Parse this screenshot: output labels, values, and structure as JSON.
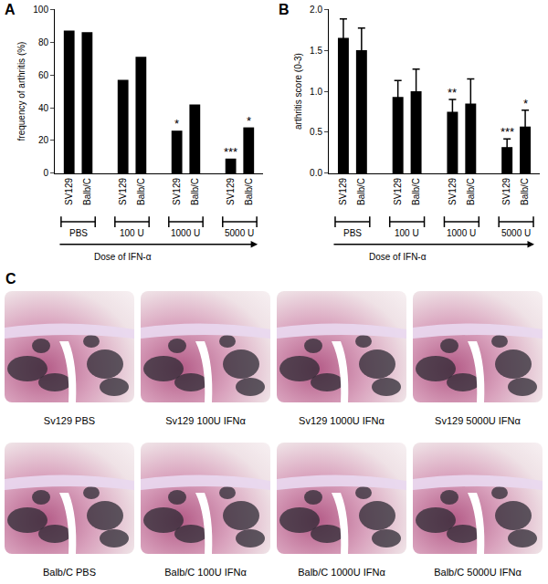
{
  "chart_data": [
    {
      "panel": "A",
      "type": "bar",
      "y_label": "frequency of arthritis (%)",
      "categories": [
        "SV129",
        "Balb/C",
        "SV129",
        "Balb/C",
        "SV129",
        "Balb/C",
        "SV129",
        "Balb/C"
      ],
      "group_labels": [
        "PBS",
        "100 U",
        "1000 U",
        "5000 U"
      ],
      "x_label": "Dose of IFN-α",
      "values": [
        87,
        86,
        57,
        71,
        26,
        42,
        9,
        28
      ],
      "significance": [
        null,
        null,
        null,
        null,
        "*",
        null,
        "***",
        "*"
      ],
      "color": "#000000",
      "ylim": [
        0,
        100
      ],
      "yticks": [
        0,
        20,
        40,
        60,
        80,
        100
      ]
    },
    {
      "panel": "B",
      "type": "bar",
      "y_label": "arthritis score (0-3)",
      "categories": [
        "SV129",
        "Balb/C",
        "SV129",
        "Balb/C",
        "SV129",
        "Balb/C",
        "SV129",
        "Balb/C"
      ],
      "group_labels": [
        "PBS",
        "100 U",
        "1000 U",
        "5000 U"
      ],
      "x_label": "Dose of IFN-α",
      "values": [
        1.65,
        1.5,
        0.93,
        1.0,
        0.75,
        0.85,
        0.32,
        0.57
      ],
      "errors": [
        0.23,
        0.27,
        0.2,
        0.27,
        0.15,
        0.3,
        0.1,
        0.2
      ],
      "significance": [
        null,
        null,
        null,
        null,
        "**",
        null,
        "***",
        "*"
      ],
      "color": "#000000",
      "ylim": [
        0,
        2
      ],
      "yticks": [
        {
          "value": 0,
          "label": "0.0"
        },
        {
          "value": 0.5,
          "label": "0.5"
        },
        {
          "value": 1,
          "label": "1.0"
        },
        {
          "value": 1.5,
          "label": "1.5"
        },
        {
          "value": 2,
          "label": "2.0"
        }
      ]
    }
  ],
  "panel_c": {
    "label": "C",
    "images": [
      {
        "caption": "Sv129 PBS"
      },
      {
        "caption": "Sv129 100U IFNα"
      },
      {
        "caption": "Sv129 1000U IFNα"
      },
      {
        "caption": "Sv129 5000U IFNα"
      },
      {
        "caption": "Balb/C PBS"
      },
      {
        "caption": "Balb/C 100U IFNα"
      },
      {
        "caption": "Balb/C 1000U IFNα"
      },
      {
        "caption": "Balb/C 5000U IFNα"
      }
    ]
  }
}
